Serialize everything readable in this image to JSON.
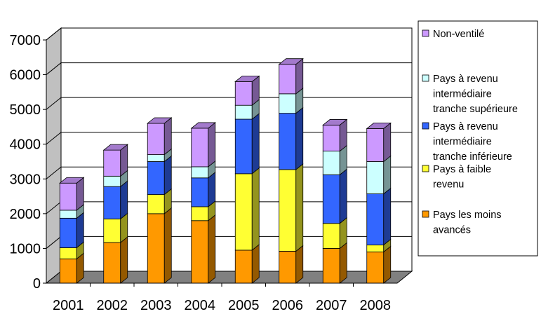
{
  "chart_data": {
    "type": "bar",
    "stacked": true,
    "style": "3d",
    "categories": [
      "2001",
      "2002",
      "2003",
      "2004",
      "2005",
      "2006",
      "2007",
      "2008"
    ],
    "series": [
      {
        "name": "Pays les moins avancés",
        "color": "#FF9900",
        "values": [
          700,
          1170,
          2000,
          1800,
          950,
          920,
          1000,
          900
        ]
      },
      {
        "name": "Pays à faible revenu",
        "color": "#FFFF33",
        "values": [
          320,
          680,
          550,
          400,
          2200,
          2350,
          720,
          200
        ]
      },
      {
        "name": "Pays à revenu intermédiaire tranche inférieure",
        "color": "#3366FF",
        "values": [
          850,
          930,
          950,
          830,
          1570,
          1620,
          1400,
          1470
        ]
      },
      {
        "name": "Pays à revenu intermédiaire tranche supérieure",
        "color": "#CCFFFF",
        "values": [
          230,
          300,
          200,
          320,
          400,
          560,
          680,
          930
        ]
      },
      {
        "name": "Non-ventilé",
        "color": "#CC99FF",
        "values": [
          780,
          750,
          900,
          1110,
          680,
          850,
          750,
          950
        ]
      }
    ],
    "legend_lines": [
      [
        "Non-ventilé"
      ],
      [
        "Pays à revenu",
        "intermédiaire",
        "tranche supérieure"
      ],
      [
        "Pays à revenu",
        "intermédiaire",
        "tranche inférieure"
      ],
      [
        "Pays à faible",
        "revenu"
      ],
      [
        "Pays les moins",
        "avancés"
      ]
    ],
    "ylim": [
      0,
      7000
    ],
    "yticks": [
      0,
      1000,
      2000,
      3000,
      4000,
      5000,
      6000,
      7000
    ],
    "gridlines": true,
    "legend_position": "right",
    "wall_color": "#C0C0C0",
    "floor_color": "#808080",
    "title": "",
    "xlabel": "",
    "ylabel": ""
  }
}
